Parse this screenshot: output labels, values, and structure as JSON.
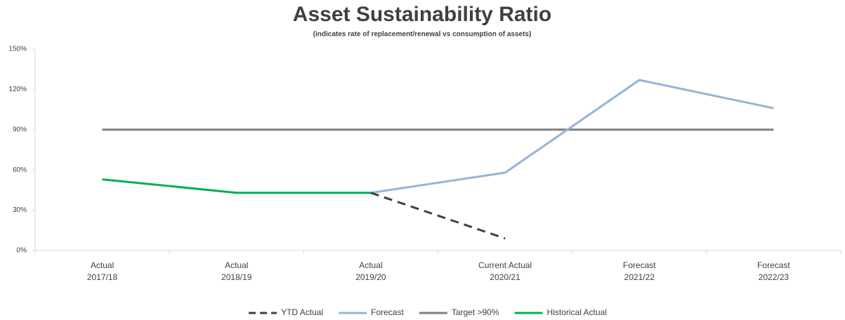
{
  "chart_data": {
    "type": "line",
    "title": "Asset Sustainability Ratio",
    "subtitle": "(indicates rate of replacement/renewal vs consumption of assets)",
    "categories": [
      "Actual\n2017/18",
      "Actual\n2018/19",
      "Actual\n2019/20",
      "Current Actual\n2020/21",
      "Forecast\n2021/22",
      "Forecast\n2022/23"
    ],
    "series": [
      {
        "name": "YTD Actual",
        "color": "#404040",
        "dashed": true,
        "values": [
          null,
          null,
          43,
          9,
          null,
          null
        ]
      },
      {
        "name": "Forecast",
        "color": "#95b3d7",
        "values": [
          null,
          null,
          43,
          58,
          127,
          106
        ]
      },
      {
        "name": "Target >90%",
        "color": "#7f7f7f",
        "values": [
          90,
          90,
          90,
          90,
          90,
          90
        ]
      },
      {
        "name": "Historical Actual",
        "color": "#00b050",
        "values": [
          53,
          43,
          43,
          null,
          null,
          null
        ]
      }
    ],
    "ylim": [
      0,
      150
    ],
    "yticks": [
      {
        "value": 0,
        "label": "0%"
      },
      {
        "value": 30,
        "label": "30%"
      },
      {
        "value": 60,
        "label": "60%"
      },
      {
        "value": 90,
        "label": "90%"
      },
      {
        "value": 120,
        "label": "120%"
      },
      {
        "value": 150,
        "label": "150%"
      }
    ],
    "grid": false,
    "legend": "bottom"
  }
}
